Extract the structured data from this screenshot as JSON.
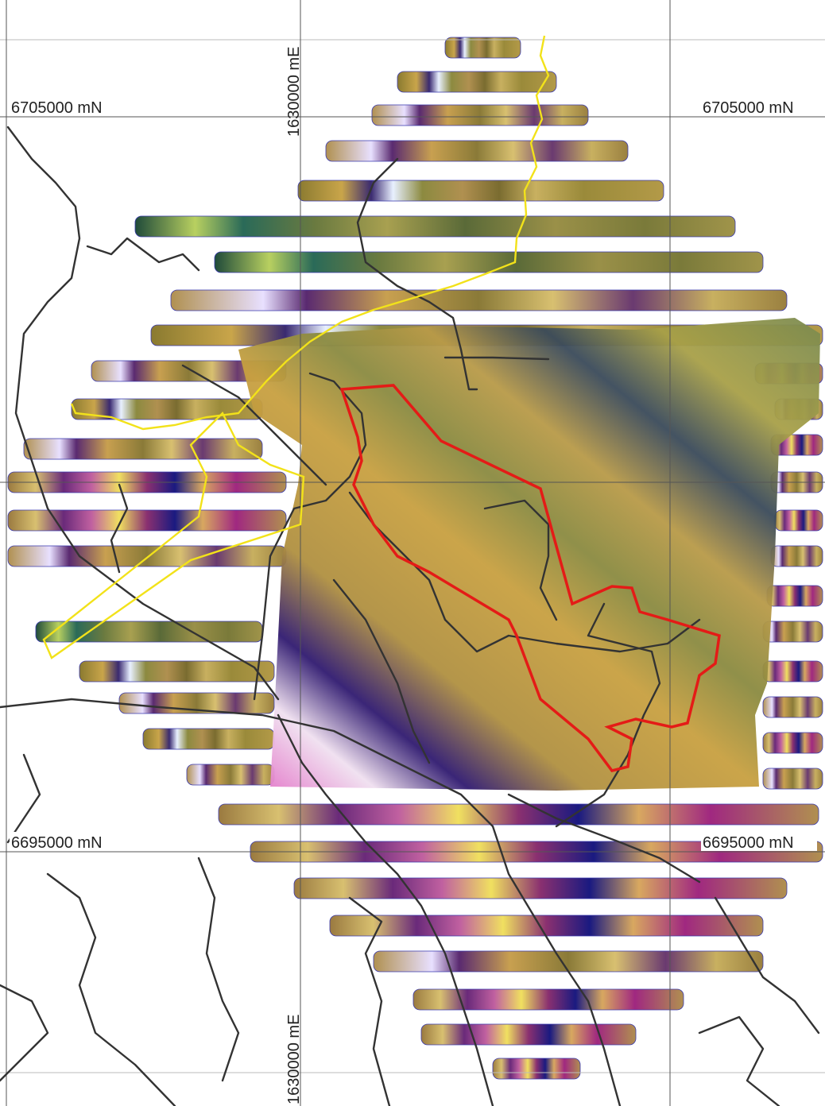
{
  "grid_labels": {
    "northing_upper": "6705000 mN",
    "northing_lower": "6695000 mN",
    "easting": "1630000 mE"
  }
}
